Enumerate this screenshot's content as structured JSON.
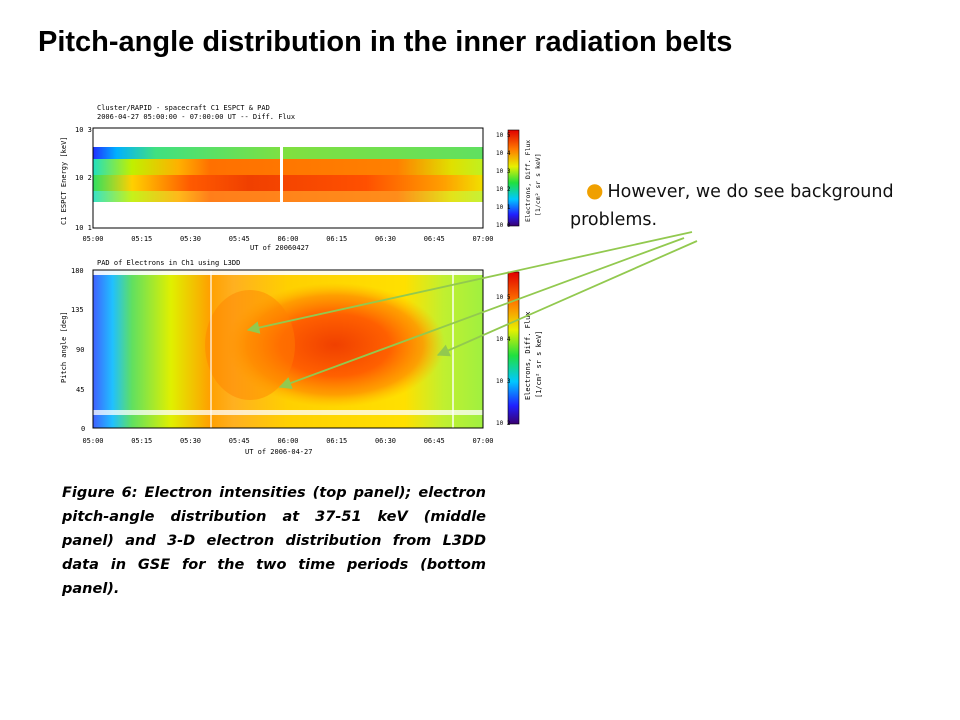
{
  "slide": {
    "title": "Pitch-angle distribution in the inner radiation belts",
    "bullet": "However, we do see background problems.",
    "caption": "Figure 6: Electron intensities (top panel); electron pitch-angle distribution at 37-51 keV (middle panel) and 3-D electron distribution from L3DD data in GSE for the two time periods (bottom panel)."
  },
  "figure": {
    "header_line1": "Cluster/RAPID - spacecraft C1 ESPCT & PAD",
    "header_line2": "2006-04-27   05:00:00 - 07:00:00 UT  --  Diff. Flux",
    "top_panel": {
      "ylabel": "C1 ESPCT Energy [keV]",
      "yticks": [
        "10 3",
        "10 2",
        "10 1"
      ],
      "xlabel": "UT of 20060427",
      "colorbar_label": "Electrons, Diff. Flux",
      "colorbar_unit": "[1/cm² sr s keV]",
      "colorbar_ticks": [
        "10 5",
        "10 4",
        "10 3",
        "10 2",
        "10 1",
        "10 0"
      ]
    },
    "bottom_panel": {
      "title": "PAD of Electrons in Ch1 using L3DD",
      "ylabel": "Pitch angle [deg]",
      "yticks": [
        "180",
        "135",
        "90",
        "45",
        "0"
      ],
      "xlabel": "UT of 2006-04-27",
      "colorbar_label": "Electrons, Diff. Flux",
      "colorbar_unit": "[1/cm² sr s keV]",
      "colorbar_ticks": [
        "10 5",
        "10 4",
        "10 3",
        "10 2"
      ]
    },
    "xticks": [
      "05:00",
      "05:15",
      "05:30",
      "05:45",
      "06:00",
      "06:15",
      "06:30",
      "06:45",
      "07:00"
    ]
  },
  "colors": {
    "arrow": "#92c94f",
    "bullet_dot": "#f0a000"
  }
}
